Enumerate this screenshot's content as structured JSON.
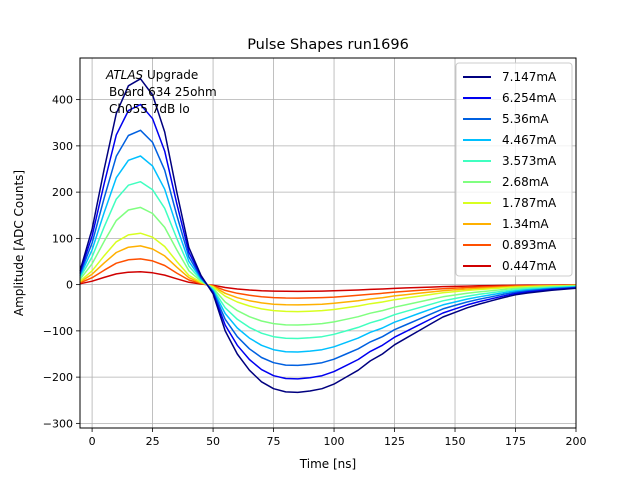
{
  "chart_data": {
    "type": "line",
    "title": "Pulse Shapes run1696",
    "xlabel": "Time [ns]",
    "ylabel": "Amplitude [ADC Counts]",
    "xlim": [
      -5,
      200
    ],
    "ylim": [
      -310,
      490
    ],
    "xticks": [
      0,
      25,
      50,
      75,
      100,
      125,
      150,
      175,
      200
    ],
    "yticks": [
      -300,
      -200,
      -100,
      0,
      100,
      200,
      300,
      400
    ],
    "grid": true,
    "legend_position": "top-right",
    "annotation": {
      "line1_italic": "ATLAS",
      "line1_rest": " Upgrade",
      "line2": "Board 634 25ohm",
      "line3": "Ch055 7dB lo"
    },
    "x": [
      -5,
      0,
      5,
      10,
      15,
      20,
      25,
      30,
      35,
      40,
      45,
      50,
      55,
      60,
      65,
      70,
      75,
      80,
      85,
      90,
      95,
      100,
      105,
      110,
      115,
      120,
      125,
      130,
      135,
      140,
      145,
      150,
      155,
      160,
      165,
      170,
      175,
      180,
      185,
      190,
      195,
      200
    ],
    "series": [
      {
        "name": "7.147mA",
        "color": "#00007f",
        "amplitude": 1.0
      },
      {
        "name": "6.254mA",
        "color": "#0000f0",
        "amplitude": 0.875
      },
      {
        "name": "5.36mA",
        "color": "#0060e0",
        "amplitude": 0.75
      },
      {
        "name": "4.467mA",
        "color": "#00c0ff",
        "amplitude": 0.625
      },
      {
        "name": "3.573mA",
        "color": "#40ffc0",
        "amplitude": 0.5
      },
      {
        "name": "2.68mA",
        "color": "#80ff80",
        "amplitude": 0.375
      },
      {
        "name": "1.787mA",
        "color": "#d8ff20",
        "amplitude": 0.25
      },
      {
        "name": "1.34mA",
        "color": "#ffb000",
        "amplitude": 0.188
      },
      {
        "name": "0.893mA",
        "color": "#ff5000",
        "amplitude": 0.125
      },
      {
        "name": "0.447mA",
        "color": "#d00000",
        "amplitude": 0.0625
      }
    ],
    "reference_shape": [
      30,
      120,
      250,
      370,
      430,
      445,
      410,
      330,
      200,
      80,
      20,
      -20,
      -100,
      -150,
      -185,
      -210,
      -225,
      -232,
      -233,
      -230,
      -225,
      -215,
      -200,
      -185,
      -165,
      -150,
      -130,
      -115,
      -100,
      -85,
      -70,
      -60,
      -50,
      -42,
      -35,
      -28,
      -22,
      -18,
      -15,
      -12,
      -10,
      -8
    ]
  }
}
